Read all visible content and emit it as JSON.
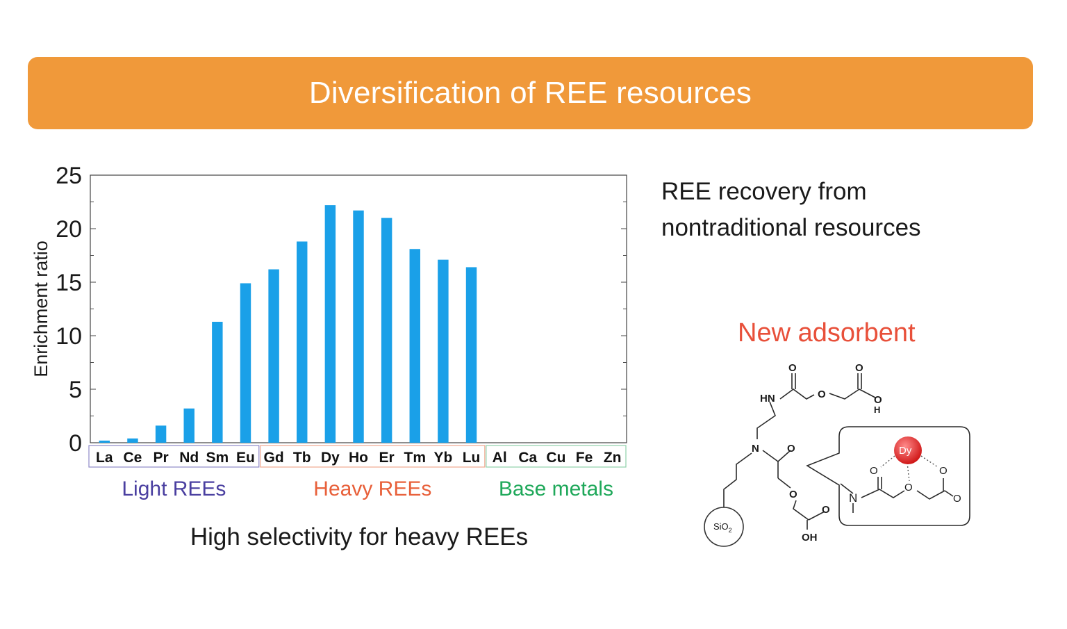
{
  "banner": {
    "title": "Diversification of REE resources",
    "color": "#F0993A"
  },
  "chart_data": {
    "type": "bar",
    "title": "",
    "ylabel": "Enrichment ratio",
    "xlabel": "",
    "ylim": [
      0,
      25
    ],
    "yticks": [
      0,
      5,
      10,
      15,
      20,
      25
    ],
    "categories": [
      "La",
      "Ce",
      "Pr",
      "Nd",
      "Sm",
      "Eu",
      "Gd",
      "Tb",
      "Dy",
      "Ho",
      "Er",
      "Tm",
      "Yb",
      "Lu",
      "Al",
      "Ca",
      "Cu",
      "Fe",
      "Zn"
    ],
    "values": [
      0.2,
      0.4,
      1.6,
      3.2,
      11.3,
      14.9,
      16.2,
      18.8,
      22.2,
      21.7,
      21.0,
      18.1,
      17.1,
      16.4,
      0,
      0,
      0,
      0,
      0
    ],
    "bar_color": "#1AA0E8",
    "groups": [
      {
        "label": "Light REEs",
        "start": 0,
        "end": 5,
        "color": "#4A3FA0",
        "box_color": "#8E88C8"
      },
      {
        "label": "Heavy REEs",
        "start": 6,
        "end": 13,
        "color": "#E8603A",
        "box_color": "#F0A890"
      },
      {
        "label": "Base metals",
        "start": 14,
        "end": 18,
        "color": "#1FA85A",
        "box_color": "#8FD0AA"
      }
    ],
    "caption": "High selectivity for heavy REEs"
  },
  "side": {
    "recovery_line1": "REE recovery from",
    "recovery_line2": "nontraditional resources",
    "new_adsorbent": "New adsorbent",
    "new_adsorbent_color": "#E8503A"
  },
  "molecule": {
    "labels": {
      "hn": "HN",
      "n": "N",
      "sio2": "SiO",
      "sio2_sub": "2",
      "o_top1": "O",
      "o_ether1": "O",
      "o_top2": "O",
      "oh_top_o": "O",
      "oh_top_h": "H",
      "o_amide2": "O",
      "o_ether2": "O",
      "o_acid2": "O",
      "oh_bottom": "OH",
      "dy": "Dy",
      "n_box": "N",
      "o_box1": "O",
      "o_box2": "O",
      "o_box3": "O",
      "o_box4": "O"
    },
    "dy_color": "#E03030"
  }
}
